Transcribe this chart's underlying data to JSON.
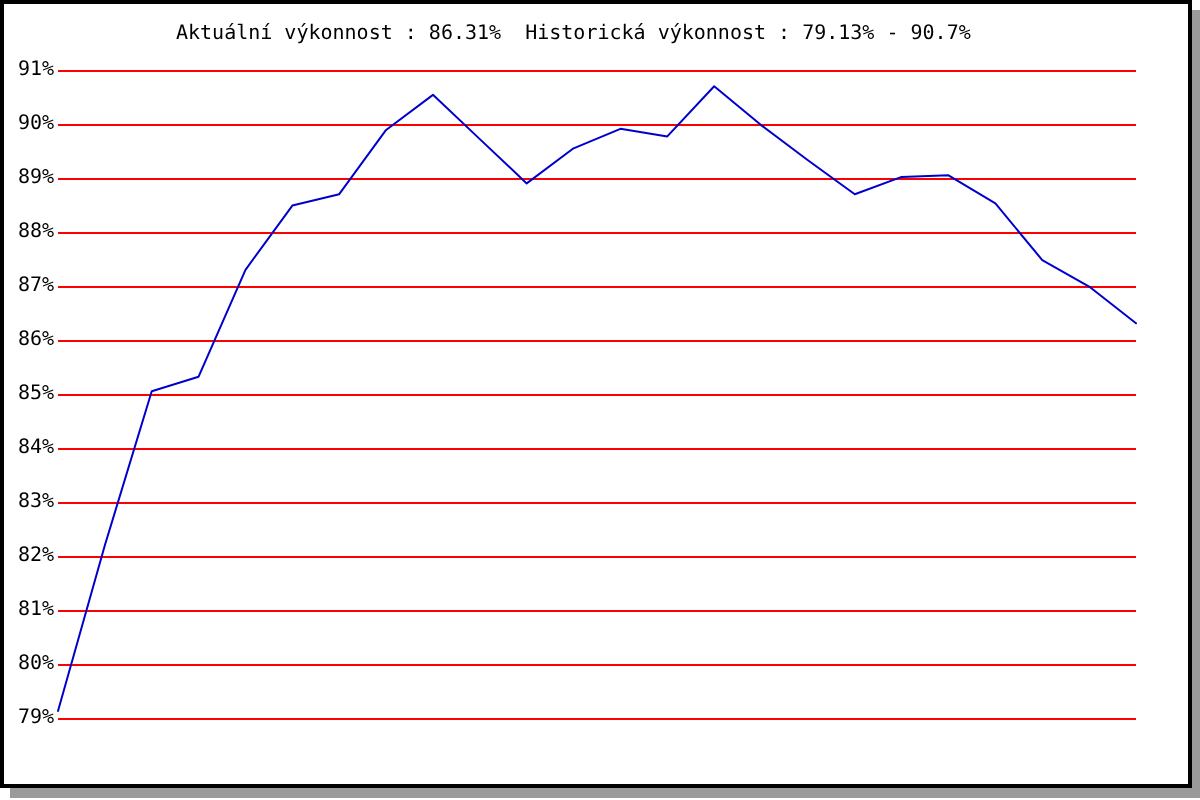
{
  "chart_data": {
    "type": "line",
    "title": "Aktuální výkonnost : 86.31%  Historická výkonnost : 79.13% - 90.7%",
    "categories": [
      null,
      null,
      null,
      null,
      null,
      null,
      null,
      null,
      null,
      null,
      null,
      null,
      null,
      null,
      null,
      null,
      null,
      null,
      null,
      null,
      null,
      null,
      null,
      null
    ],
    "series": [
      {
        "color": "#0000cc",
        "values": [
          79.13,
          82.2,
          85.05,
          85.32,
          87.3,
          88.49,
          88.7,
          89.89,
          90.54,
          89.72,
          88.9,
          89.55,
          89.91,
          89.77,
          90.7,
          89.98,
          89.33,
          88.7,
          89.02,
          89.05,
          88.53,
          87.48,
          86.99,
          86.31
        ]
      }
    ],
    "ylim": [
      79,
      91
    ],
    "yticks": [
      {
        "value": 79,
        "label": "79%"
      },
      {
        "value": 80,
        "label": "80%"
      },
      {
        "value": 81,
        "label": "81%"
      },
      {
        "value": 82,
        "label": "82%"
      },
      {
        "value": 83,
        "label": "83%"
      },
      {
        "value": 84,
        "label": "84%"
      },
      {
        "value": 85,
        "label": "85%"
      },
      {
        "value": 86,
        "label": "86%"
      },
      {
        "value": 87,
        "label": "87%"
      },
      {
        "value": 88,
        "label": "88%"
      },
      {
        "value": 89,
        "label": "89%"
      },
      {
        "value": 90,
        "label": "90%"
      },
      {
        "value": 91,
        "label": "91%"
      }
    ],
    "grid": "y",
    "tick_labels": "y",
    "marker": "none",
    "line_style": "solid"
  }
}
